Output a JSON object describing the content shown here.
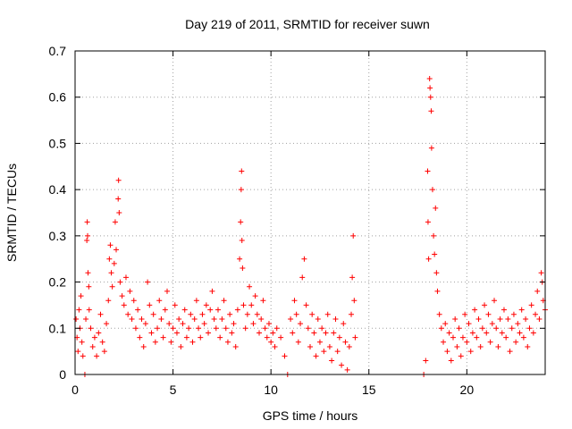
{
  "chart_data": {
    "type": "scatter",
    "title": "Day 219 of 2011, SRMTID for receiver suwn",
    "xlabel": "GPS time / hours",
    "ylabel": "SRMTID / TECUs",
    "xlim": [
      0,
      24
    ],
    "ylim": [
      0,
      0.7
    ],
    "xticks": [
      0,
      5,
      10,
      15,
      20
    ],
    "xtick_labels": [
      "0",
      "5",
      "10",
      "15",
      "20"
    ],
    "yticks": [
      0,
      0.1,
      0.2,
      0.3,
      0.4,
      0.5,
      0.6,
      0.7
    ],
    "ytick_labels": [
      "0",
      "0.1",
      "0.2",
      "0.3",
      "0.4",
      "0.5",
      "0.6",
      "0.7"
    ],
    "grid": true,
    "marker": "+",
    "color": "#ff0000",
    "data_gap_hours": [
      14.4,
      17.8
    ],
    "series": [
      {
        "name": "SRMTID",
        "points": [
          [
            0.05,
            0.12
          ],
          [
            0.1,
            0.08
          ],
          [
            0.15,
            0.05
          ],
          [
            0.2,
            0.14
          ],
          [
            0.25,
            0.1
          ],
          [
            0.3,
            0.17
          ],
          [
            0.35,
            0.07
          ],
          [
            0.4,
            0.04
          ],
          [
            0.5,
            0.0
          ],
          [
            0.55,
            0.12
          ],
          [
            0.6,
            0.29
          ],
          [
            0.62,
            0.33
          ],
          [
            0.64,
            0.3
          ],
          [
            0.66,
            0.22
          ],
          [
            0.7,
            0.19
          ],
          [
            0.72,
            0.14
          ],
          [
            0.8,
            0.1
          ],
          [
            0.9,
            0.06
          ],
          [
            1.0,
            0.08
          ],
          [
            1.1,
            0.04
          ],
          [
            1.2,
            0.09
          ],
          [
            1.3,
            0.13
          ],
          [
            1.4,
            0.07
          ],
          [
            1.5,
            0.05
          ],
          [
            1.6,
            0.11
          ],
          [
            1.7,
            0.16
          ],
          [
            1.75,
            0.25
          ],
          [
            1.8,
            0.28
          ],
          [
            1.85,
            0.22
          ],
          [
            1.9,
            0.19
          ],
          [
            2.0,
            0.24
          ],
          [
            2.05,
            0.33
          ],
          [
            2.1,
            0.27
          ],
          [
            2.2,
            0.38
          ],
          [
            2.22,
            0.42
          ],
          [
            2.25,
            0.35
          ],
          [
            2.3,
            0.2
          ],
          [
            2.4,
            0.17
          ],
          [
            2.5,
            0.15
          ],
          [
            2.6,
            0.21
          ],
          [
            2.7,
            0.13
          ],
          [
            2.8,
            0.18
          ],
          [
            2.9,
            0.12
          ],
          [
            3.0,
            0.16
          ],
          [
            3.1,
            0.1
          ],
          [
            3.2,
            0.14
          ],
          [
            3.3,
            0.08
          ],
          [
            3.4,
            0.12
          ],
          [
            3.5,
            0.06
          ],
          [
            3.6,
            0.11
          ],
          [
            3.7,
            0.2
          ],
          [
            3.8,
            0.15
          ],
          [
            3.9,
            0.09
          ],
          [
            4.0,
            0.13
          ],
          [
            4.1,
            0.07
          ],
          [
            4.2,
            0.1
          ],
          [
            4.3,
            0.16
          ],
          [
            4.4,
            0.12
          ],
          [
            4.5,
            0.08
          ],
          [
            4.6,
            0.14
          ],
          [
            4.7,
            0.18
          ],
          [
            4.8,
            0.11
          ],
          [
            4.9,
            0.07
          ],
          [
            5.0,
            0.1
          ],
          [
            5.1,
            0.15
          ],
          [
            5.2,
            0.09
          ],
          [
            5.3,
            0.12
          ],
          [
            5.4,
            0.06
          ],
          [
            5.5,
            0.11
          ],
          [
            5.6,
            0.14
          ],
          [
            5.7,
            0.08
          ],
          [
            5.8,
            0.1
          ],
          [
            5.9,
            0.13
          ],
          [
            6.0,
            0.07
          ],
          [
            6.1,
            0.12
          ],
          [
            6.2,
            0.16
          ],
          [
            6.3,
            0.1
          ],
          [
            6.4,
            0.08
          ],
          [
            6.5,
            0.13
          ],
          [
            6.6,
            0.11
          ],
          [
            6.7,
            0.15
          ],
          [
            6.8,
            0.09
          ],
          [
            6.9,
            0.14
          ],
          [
            7.0,
            0.18
          ],
          [
            7.1,
            0.12
          ],
          [
            7.2,
            0.1
          ],
          [
            7.3,
            0.14
          ],
          [
            7.4,
            0.08
          ],
          [
            7.5,
            0.12
          ],
          [
            7.6,
            0.16
          ],
          [
            7.7,
            0.1
          ],
          [
            7.8,
            0.07
          ],
          [
            7.9,
            0.13
          ],
          [
            8.0,
            0.09
          ],
          [
            8.1,
            0.11
          ],
          [
            8.2,
            0.06
          ],
          [
            8.3,
            0.14
          ],
          [
            8.4,
            0.25
          ],
          [
            8.45,
            0.33
          ],
          [
            8.48,
            0.4
          ],
          [
            8.5,
            0.44
          ],
          [
            8.52,
            0.29
          ],
          [
            8.55,
            0.23
          ],
          [
            8.6,
            0.15
          ],
          [
            8.7,
            0.1
          ],
          [
            8.8,
            0.13
          ],
          [
            8.9,
            0.19
          ],
          [
            9.0,
            0.15
          ],
          [
            9.1,
            0.11
          ],
          [
            9.2,
            0.17
          ],
          [
            9.3,
            0.13
          ],
          [
            9.4,
            0.09
          ],
          [
            9.5,
            0.12
          ],
          [
            9.6,
            0.16
          ],
          [
            9.7,
            0.1
          ],
          [
            9.8,
            0.08
          ],
          [
            9.9,
            0.11
          ],
          [
            10.0,
            0.07
          ],
          [
            10.1,
            0.09
          ],
          [
            10.2,
            0.06
          ],
          [
            10.3,
            0.1
          ],
          [
            10.5,
            0.08
          ],
          [
            10.7,
            0.04
          ],
          [
            10.85,
            0.0
          ],
          [
            11.0,
            0.12
          ],
          [
            11.1,
            0.09
          ],
          [
            11.2,
            0.16
          ],
          [
            11.3,
            0.13
          ],
          [
            11.4,
            0.07
          ],
          [
            11.5,
            0.11
          ],
          [
            11.6,
            0.21
          ],
          [
            11.7,
            0.25
          ],
          [
            11.8,
            0.15
          ],
          [
            11.9,
            0.1
          ],
          [
            12.0,
            0.06
          ],
          [
            12.1,
            0.13
          ],
          [
            12.2,
            0.09
          ],
          [
            12.3,
            0.04
          ],
          [
            12.4,
            0.12
          ],
          [
            12.5,
            0.07
          ],
          [
            12.6,
            0.1
          ],
          [
            12.7,
            0.05
          ],
          [
            12.8,
            0.09
          ],
          [
            12.9,
            0.13
          ],
          [
            13.0,
            0.06
          ],
          [
            13.1,
            0.03
          ],
          [
            13.2,
            0.09
          ],
          [
            13.3,
            0.12
          ],
          [
            13.4,
            0.05
          ],
          [
            13.5,
            0.08
          ],
          [
            13.6,
            0.02
          ],
          [
            13.7,
            0.11
          ],
          [
            13.8,
            0.07
          ],
          [
            13.9,
            0.01
          ],
          [
            14.0,
            0.06
          ],
          [
            14.1,
            0.13
          ],
          [
            14.15,
            0.21
          ],
          [
            14.2,
            0.3
          ],
          [
            14.25,
            0.16
          ],
          [
            14.3,
            0.08
          ],
          [
            17.8,
            0.0
          ],
          [
            17.9,
            0.03
          ],
          [
            18.0,
            0.44
          ],
          [
            18.02,
            0.33
          ],
          [
            18.05,
            0.25
          ],
          [
            18.1,
            0.64
          ],
          [
            18.12,
            0.62
          ],
          [
            18.15,
            0.6
          ],
          [
            18.18,
            0.57
          ],
          [
            18.2,
            0.49
          ],
          [
            18.25,
            0.4
          ],
          [
            18.3,
            0.3
          ],
          [
            18.35,
            0.26
          ],
          [
            18.4,
            0.36
          ],
          [
            18.45,
            0.22
          ],
          [
            18.5,
            0.18
          ],
          [
            18.6,
            0.13
          ],
          [
            18.7,
            0.1
          ],
          [
            18.8,
            0.07
          ],
          [
            18.9,
            0.11
          ],
          [
            19.0,
            0.05
          ],
          [
            19.1,
            0.09
          ],
          [
            19.2,
            0.03
          ],
          [
            19.3,
            0.08
          ],
          [
            19.4,
            0.12
          ],
          [
            19.5,
            0.06
          ],
          [
            19.6,
            0.1
          ],
          [
            19.7,
            0.04
          ],
          [
            19.8,
            0.08
          ],
          [
            19.9,
            0.13
          ],
          [
            20.0,
            0.07
          ],
          [
            20.1,
            0.11
          ],
          [
            20.2,
            0.05
          ],
          [
            20.3,
            0.09
          ],
          [
            20.4,
            0.14
          ],
          [
            20.5,
            0.08
          ],
          [
            20.6,
            0.12
          ],
          [
            20.7,
            0.06
          ],
          [
            20.8,
            0.1
          ],
          [
            20.9,
            0.15
          ],
          [
            21.0,
            0.09
          ],
          [
            21.1,
            0.13
          ],
          [
            21.2,
            0.07
          ],
          [
            21.3,
            0.11
          ],
          [
            21.4,
            0.16
          ],
          [
            21.5,
            0.1
          ],
          [
            21.6,
            0.06
          ],
          [
            21.7,
            0.12
          ],
          [
            21.8,
            0.09
          ],
          [
            21.9,
            0.14
          ],
          [
            22.0,
            0.08
          ],
          [
            22.1,
            0.12
          ],
          [
            22.2,
            0.05
          ],
          [
            22.3,
            0.1
          ],
          [
            22.4,
            0.13
          ],
          [
            22.5,
            0.07
          ],
          [
            22.6,
            0.11
          ],
          [
            22.7,
            0.09
          ],
          [
            22.8,
            0.14
          ],
          [
            22.9,
            0.08
          ],
          [
            23.0,
            0.12
          ],
          [
            23.1,
            0.06
          ],
          [
            23.2,
            0.1
          ],
          [
            23.3,
            0.15
          ],
          [
            23.4,
            0.09
          ],
          [
            23.5,
            0.13
          ],
          [
            23.6,
            0.18
          ],
          [
            23.7,
            0.12
          ],
          [
            23.8,
            0.22
          ],
          [
            23.85,
            0.2
          ],
          [
            23.9,
            0.16
          ],
          [
            24.0,
            0.14
          ]
        ]
      }
    ]
  }
}
